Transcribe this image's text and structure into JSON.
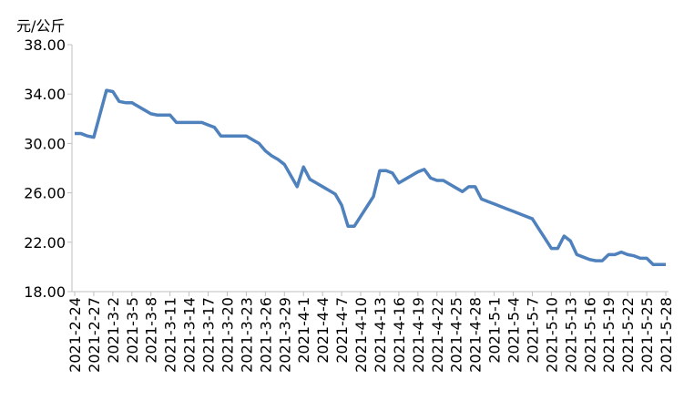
{
  "chart_data": {
    "type": "line",
    "y_label": "元/公斤",
    "categories": [
      "2021-2-24",
      null,
      null,
      "2021-2-27",
      null,
      null,
      "2021-3-2",
      null,
      null,
      "2021-3-5",
      null,
      null,
      "2021-3-8",
      null,
      null,
      "2021-3-11",
      null,
      null,
      "2021-3-14",
      null,
      null,
      "2021-3-17",
      null,
      null,
      "2021-3-20",
      null,
      null,
      "2021-3-23",
      null,
      null,
      "2021-3-26",
      null,
      null,
      "2021-3-29",
      null,
      null,
      "2021-4-1",
      null,
      null,
      "2021-4-4",
      null,
      null,
      "2021-4-7",
      null,
      null,
      "2021-4-10",
      null,
      null,
      "2021-4-13",
      null,
      null,
      "2021-4-16",
      null,
      null,
      "2021-4-19",
      null,
      null,
      "2021-4-22",
      null,
      null,
      "2021-4-25",
      null,
      null,
      "2021-4-28",
      null,
      null,
      "2021-5-1",
      null,
      null,
      "2021-5-4",
      null,
      null,
      "2021-5-7",
      null,
      null,
      "2021-5-10",
      null,
      null,
      "2021-5-13",
      null,
      null,
      "2021-5-16",
      null,
      null,
      "2021-5-19",
      null,
      null,
      "2021-5-22",
      null,
      null,
      "2021-5-25",
      null,
      null,
      "2021-5-28"
    ],
    "values": [
      30.8,
      30.8,
      30.6,
      30.5,
      32.4,
      34.3,
      34.2,
      33.4,
      33.3,
      33.3,
      33.0,
      32.7,
      32.4,
      32.3,
      32.3,
      32.3,
      31.7,
      31.7,
      31.7,
      31.7,
      31.7,
      31.5,
      31.3,
      30.6,
      30.6,
      30.6,
      30.6,
      30.6,
      30.3,
      30.0,
      29.4,
      29.0,
      28.7,
      28.3,
      27.4,
      26.5,
      28.1,
      27.1,
      26.8,
      26.5,
      26.2,
      25.9,
      25.0,
      23.3,
      23.3,
      24.1,
      24.9,
      25.7,
      27.8,
      27.8,
      27.6,
      26.8,
      27.1,
      27.4,
      27.7,
      27.9,
      27.2,
      27.0,
      27.0,
      26.7,
      26.4,
      26.1,
      26.5,
      26.5,
      25.5,
      25.3,
      25.1,
      24.9,
      24.7,
      24.5,
      24.3,
      24.1,
      23.9,
      23.1,
      22.3,
      21.5,
      21.5,
      22.5,
      22.1,
      21.0,
      20.8,
      20.6,
      20.5,
      20.5,
      21.0,
      21.0,
      21.2,
      21.0,
      20.9,
      20.7,
      20.7,
      20.2,
      20.2,
      20.2
    ],
    "color": "#4f81bd",
    "ylim": [
      18,
      38
    ],
    "yticks": [
      {
        "value": 18,
        "label": "18.00"
      },
      {
        "value": 22,
        "label": "22.00"
      },
      {
        "value": 26,
        "label": "26.00"
      },
      {
        "value": 30,
        "label": "30.00"
      },
      {
        "value": 34,
        "label": "34.00"
      },
      {
        "value": 38,
        "label": "38.00"
      }
    ]
  }
}
